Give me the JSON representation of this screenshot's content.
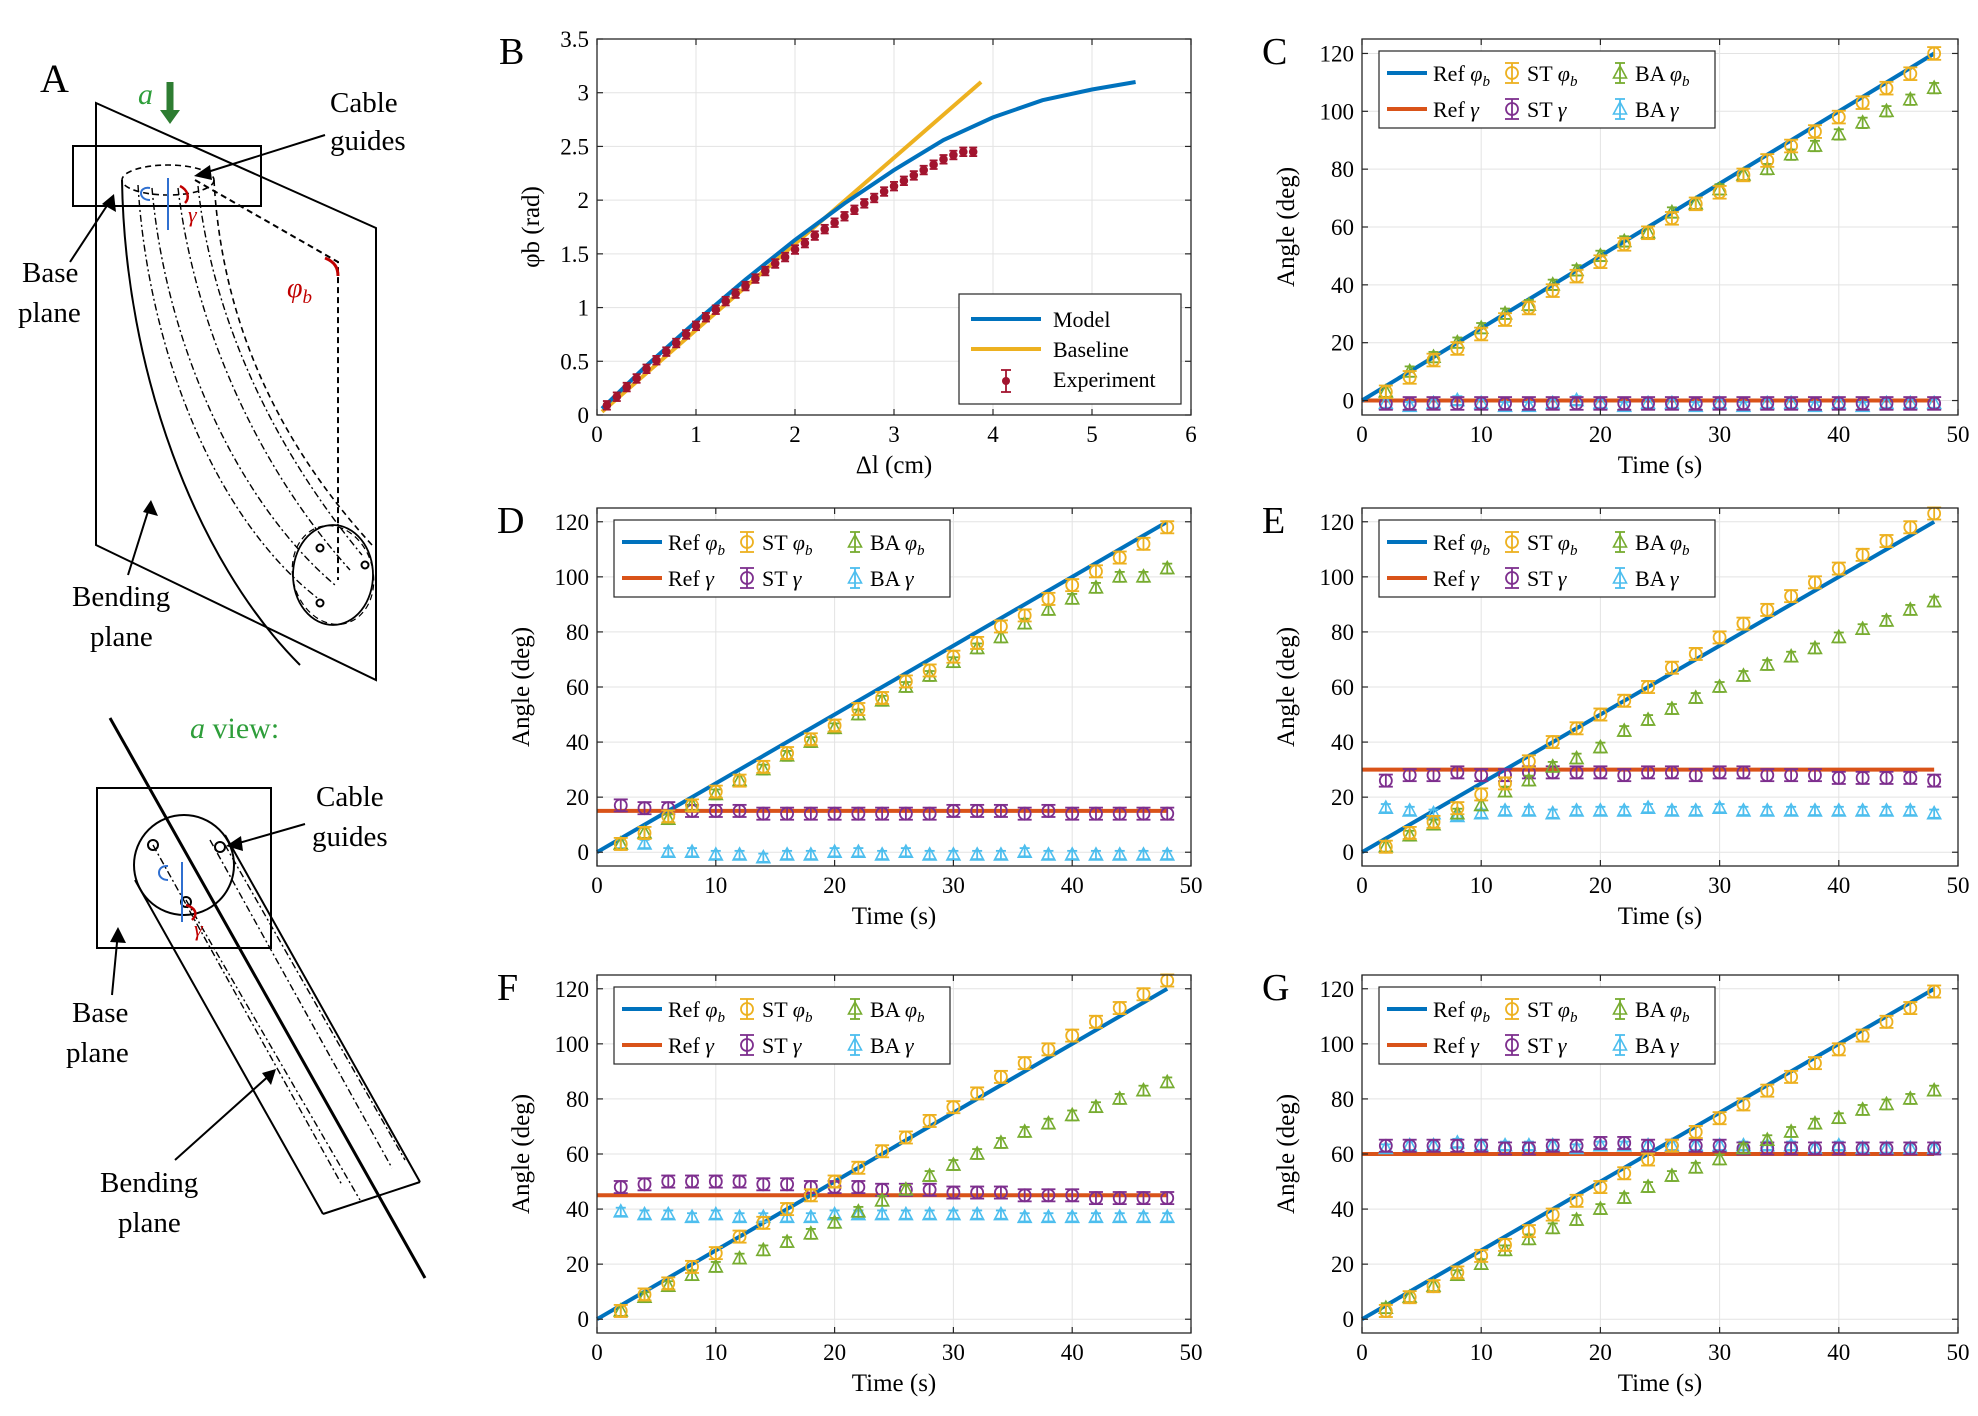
{
  "colors": {
    "ref_phi": "#0072BD",
    "ref_gamma": "#D95319",
    "st_phi": "#EDB120",
    "st_gamma": "#7E2F8E",
    "ba_phi": "#77AC30",
    "ba_gamma": "#4DBEEE",
    "experiment": "#A2142F",
    "annotation_red": "#C00000",
    "annotation_blue": "#2F6FD0",
    "annotation_green": "#2E9E3A",
    "arrow_green": "#2E7D32"
  },
  "schematic": {
    "panel_letter": "A",
    "top": {
      "arrow_label": "a",
      "cable_guides": "Cable guides",
      "base_plane": "Base plane",
      "bending_plane": "Bending plane",
      "phi_label": "φb",
      "gamma_label": "γ"
    },
    "bottom": {
      "view_title": "a view:",
      "cable_guides": "Cable guides",
      "base_plane": "Base plane",
      "bending_plane": "Bending plane",
      "gamma_label": "γ"
    }
  },
  "chart_data": [
    {
      "panel": "B",
      "type": "line",
      "xlabel": "Δl (cm)",
      "ylabel": "φb (rad)",
      "xlim": [
        0,
        6
      ],
      "ylim": [
        0,
        3.5
      ],
      "xticks": [
        0,
        1,
        2,
        3,
        4,
        5,
        6
      ],
      "yticks": [
        0,
        0.5,
        1,
        1.5,
        2,
        2.5,
        3,
        3.5
      ],
      "grid": true,
      "legend_position": "bottom-right",
      "legend": [
        "Model",
        "Baseline",
        "Experiment"
      ],
      "series": [
        {
          "name": "Model",
          "kind": "line",
          "color": "ref_phi",
          "x": [
            0.05,
            0.5,
            1.0,
            1.5,
            2.0,
            2.5,
            3.0,
            3.5,
            4.0,
            4.5,
            5.0,
            5.44
          ],
          "y": [
            0.06,
            0.46,
            0.87,
            1.26,
            1.63,
            1.97,
            2.28,
            2.56,
            2.77,
            2.93,
            3.03,
            3.1
          ]
        },
        {
          "name": "Baseline",
          "kind": "line",
          "color": "st_phi",
          "x": [
            0.05,
            3.88
          ],
          "y": [
            0.03,
            3.1
          ]
        },
        {
          "name": "Experiment",
          "kind": "errorbar",
          "color": "experiment",
          "x": [
            0.1,
            0.2,
            0.3,
            0.4,
            0.5,
            0.6,
            0.7,
            0.8,
            0.9,
            1.0,
            1.1,
            1.2,
            1.3,
            1.4,
            1.5,
            1.6,
            1.7,
            1.8,
            1.9,
            2.0,
            2.1,
            2.2,
            2.3,
            2.4,
            2.5,
            2.6,
            2.7,
            2.8,
            2.9,
            3.0,
            3.1,
            3.2,
            3.3,
            3.4,
            3.5,
            3.6,
            3.7,
            3.8
          ],
          "y": [
            0.09,
            0.17,
            0.26,
            0.34,
            0.43,
            0.51,
            0.59,
            0.67,
            0.75,
            0.83,
            0.91,
            0.98,
            1.06,
            1.13,
            1.2,
            1.27,
            1.34,
            1.41,
            1.47,
            1.54,
            1.6,
            1.67,
            1.73,
            1.79,
            1.85,
            1.91,
            1.97,
            2.02,
            2.08,
            2.13,
            2.18,
            2.23,
            2.28,
            2.33,
            2.38,
            2.42,
            2.45,
            2.45
          ],
          "err": 0.04
        }
      ]
    },
    {
      "panel": "C",
      "type": "line",
      "xlabel": "Time (s)",
      "ylabel": "Angle (deg)",
      "xlim": [
        0,
        50
      ],
      "ylim": [
        -5,
        125
      ],
      "xticks": [
        0,
        10,
        20,
        30,
        40,
        50
      ],
      "yticks": [
        0,
        20,
        40,
        60,
        80,
        100,
        120
      ],
      "grid": true,
      "legend_position": "top-left",
      "legend": [
        "Ref φb",
        "ST φb",
        "BA φb",
        "Ref γ",
        "ST γ",
        "BA γ"
      ],
      "ref_phi": {
        "x": [
          0,
          48
        ],
        "y": [
          0,
          120
        ]
      },
      "ref_gamma": 0,
      "t": [
        2,
        4,
        6,
        8,
        10,
        12,
        14,
        16,
        18,
        20,
        22,
        24,
        26,
        28,
        30,
        32,
        34,
        36,
        38,
        40,
        42,
        44,
        46,
        48
      ],
      "st_phi": [
        3,
        8,
        14,
        18,
        23,
        28,
        32,
        38,
        43,
        48,
        54,
        58,
        63,
        68,
        72,
        78,
        83,
        88,
        93,
        98,
        103,
        108,
        113,
        120
      ],
      "ba_phi": [
        3,
        10,
        15,
        20,
        25,
        30,
        33,
        40,
        45,
        50,
        55,
        58,
        65,
        68,
        73,
        78,
        80,
        85,
        88,
        92,
        96,
        100,
        104,
        108
      ],
      "st_gamma": [
        -1,
        -1,
        -1,
        -1,
        -1,
        -1,
        -1,
        -1,
        -1,
        -1,
        -1,
        -1,
        -1,
        -1,
        -1,
        -1,
        -1,
        -1,
        -1,
        -1,
        -1,
        -1,
        -1,
        -1
      ],
      "ba_gamma": [
        -1,
        -2,
        -1,
        0,
        -1,
        -2,
        -2,
        -1,
        0,
        -1,
        -2,
        -1,
        -1,
        -2,
        -1,
        -2,
        -1,
        -1,
        -2,
        -1,
        -2,
        -1,
        -1,
        -1
      ]
    },
    {
      "panel": "D",
      "type": "line",
      "xlabel": "Time (s)",
      "ylabel": "Angle (deg)",
      "xlim": [
        0,
        50
      ],
      "ylim": [
        -5,
        125
      ],
      "xticks": [
        0,
        10,
        20,
        30,
        40,
        50
      ],
      "yticks": [
        0,
        20,
        40,
        60,
        80,
        100,
        120
      ],
      "grid": true,
      "legend_position": "top-left",
      "legend": [
        "Ref φb",
        "ST φb",
        "BA φb",
        "Ref γ",
        "ST γ",
        "BA γ"
      ],
      "ref_phi": {
        "x": [
          0,
          48
        ],
        "y": [
          0,
          120
        ]
      },
      "ref_gamma": 15,
      "t": [
        2,
        4,
        6,
        8,
        10,
        12,
        14,
        16,
        18,
        20,
        22,
        24,
        26,
        28,
        30,
        32,
        34,
        36,
        38,
        40,
        42,
        44,
        46,
        48
      ],
      "st_phi": [
        3,
        7,
        13,
        17,
        22,
        26,
        31,
        36,
        41,
        46,
        52,
        56,
        62,
        66,
        71,
        76,
        82,
        86,
        92,
        97,
        102,
        107,
        112,
        118
      ],
      "ba_phi": [
        3,
        7,
        12,
        17,
        21,
        26,
        30,
        35,
        40,
        45,
        50,
        55,
        60,
        64,
        69,
        74,
        78,
        83,
        88,
        92,
        96,
        100,
        100,
        103
      ],
      "st_gamma": [
        17,
        16,
        16,
        15,
        15,
        15,
        14,
        14,
        14,
        14,
        14,
        14,
        14,
        14,
        15,
        15,
        15,
        14,
        15,
        14,
        14,
        14,
        14,
        14
      ],
      "ba_gamma": [
        3,
        3,
        0,
        0,
        -1,
        -1,
        -2,
        -1,
        -1,
        0,
        0,
        -1,
        0,
        -1,
        -1,
        -1,
        -1,
        0,
        -1,
        -1,
        -1,
        -1,
        -1,
        -1
      ]
    },
    {
      "panel": "E",
      "type": "line",
      "xlabel": "Time (s)",
      "ylabel": "Angle (deg)",
      "xlim": [
        0,
        50
      ],
      "ylim": [
        -5,
        125
      ],
      "xticks": [
        0,
        10,
        20,
        30,
        40,
        50
      ],
      "yticks": [
        0,
        20,
        40,
        60,
        80,
        100,
        120
      ],
      "grid": true,
      "legend_position": "top-left",
      "legend": [
        "Ref φb",
        "ST φb",
        "BA φb",
        "Ref γ",
        "ST γ",
        "BA γ"
      ],
      "ref_phi": {
        "x": [
          0,
          48
        ],
        "y": [
          0,
          120
        ]
      },
      "ref_gamma": 30,
      "t": [
        2,
        4,
        6,
        8,
        10,
        12,
        14,
        16,
        18,
        20,
        22,
        24,
        26,
        28,
        30,
        32,
        34,
        36,
        38,
        40,
        42,
        44,
        46,
        48
      ],
      "st_phi": [
        2,
        7,
        11,
        16,
        21,
        25,
        33,
        40,
        45,
        50,
        55,
        60,
        67,
        72,
        78,
        83,
        88,
        93,
        98,
        103,
        108,
        113,
        118,
        123
      ],
      "ba_phi": [
        2,
        6,
        10,
        14,
        17,
        22,
        26,
        31,
        34,
        38,
        44,
        48,
        52,
        56,
        60,
        64,
        68,
        71,
        74,
        78,
        81,
        84,
        88,
        91
      ],
      "st_gamma": [
        26,
        28,
        28,
        29,
        28,
        28,
        29,
        29,
        29,
        29,
        28,
        29,
        29,
        28,
        29,
        29,
        28,
        28,
        28,
        27,
        27,
        27,
        27,
        26
      ],
      "ba_gamma": [
        16,
        15,
        14,
        13,
        14,
        15,
        15,
        14,
        15,
        15,
        15,
        16,
        15,
        15,
        16,
        15,
        15,
        15,
        15,
        15,
        15,
        15,
        15,
        14
      ]
    },
    {
      "panel": "F",
      "type": "line",
      "xlabel": "Time (s)",
      "ylabel": "Angle (deg)",
      "xlim": [
        0,
        50
      ],
      "ylim": [
        -5,
        125
      ],
      "xticks": [
        0,
        10,
        20,
        30,
        40,
        50
      ],
      "yticks": [
        0,
        20,
        40,
        60,
        80,
        100,
        120
      ],
      "grid": true,
      "legend_position": "top-left",
      "legend": [
        "Ref φb",
        "ST φb",
        "BA φb",
        "Ref γ",
        "ST γ",
        "BA γ"
      ],
      "ref_phi": {
        "x": [
          0,
          48
        ],
        "y": [
          0,
          120
        ]
      },
      "ref_gamma": 45,
      "t": [
        2,
        4,
        6,
        8,
        10,
        12,
        14,
        16,
        18,
        20,
        22,
        24,
        26,
        28,
        30,
        32,
        34,
        36,
        38,
        40,
        42,
        44,
        46,
        48
      ],
      "st_phi": [
        3,
        9,
        13,
        19,
        24,
        30,
        35,
        40,
        45,
        50,
        55,
        61,
        66,
        72,
        77,
        82,
        88,
        93,
        98,
        103,
        108,
        113,
        118,
        123
      ],
      "ba_phi": [
        3,
        8,
        12,
        16,
        19,
        22,
        25,
        28,
        31,
        35,
        39,
        43,
        47,
        52,
        56,
        60,
        64,
        68,
        71,
        74,
        77,
        80,
        83,
        86
      ],
      "st_gamma": [
        48,
        49,
        50,
        50,
        50,
        50,
        49,
        49,
        48,
        48,
        48,
        47,
        47,
        47,
        46,
        46,
        46,
        45,
        45,
        45,
        44,
        44,
        44,
        44
      ],
      "ba_gamma": [
        39,
        38,
        38,
        37,
        38,
        37,
        37,
        37,
        37,
        38,
        38,
        38,
        38,
        38,
        38,
        38,
        38,
        37,
        37,
        37,
        37,
        37,
        37,
        37
      ]
    },
    {
      "panel": "G",
      "type": "line",
      "xlabel": "Time (s)",
      "ylabel": "Angle (deg)",
      "xlim": [
        0,
        50
      ],
      "ylim": [
        -5,
        125
      ],
      "xticks": [
        0,
        10,
        20,
        30,
        40,
        50
      ],
      "yticks": [
        0,
        20,
        40,
        60,
        80,
        100,
        120
      ],
      "grid": true,
      "legend_position": "top-left",
      "legend": [
        "Ref φb",
        "ST φb",
        "BA φb",
        "Ref γ",
        "ST γ",
        "BA γ"
      ],
      "ref_phi": {
        "x": [
          0,
          48
        ],
        "y": [
          0,
          120
        ]
      },
      "ref_gamma": 60,
      "t": [
        2,
        4,
        6,
        8,
        10,
        12,
        14,
        16,
        18,
        20,
        22,
        24,
        26,
        28,
        30,
        32,
        34,
        36,
        38,
        40,
        42,
        44,
        46,
        48
      ],
      "st_phi": [
        3,
        8,
        12,
        17,
        23,
        27,
        32,
        38,
        43,
        48,
        53,
        58,
        63,
        68,
        73,
        78,
        83,
        88,
        93,
        98,
        103,
        108,
        113,
        119
      ],
      "ba_phi": [
        4,
        8,
        12,
        16,
        20,
        25,
        29,
        33,
        36,
        40,
        44,
        48,
        52,
        55,
        58,
        62,
        65,
        68,
        71,
        73,
        76,
        78,
        80,
        83
      ],
      "st_gamma": [
        63,
        63,
        63,
        63,
        63,
        62,
        62,
        63,
        63,
        64,
        64,
        63,
        63,
        63,
        63,
        62,
        62,
        62,
        62,
        62,
        62,
        62,
        62,
        62
      ],
      "ba_gamma": [
        62,
        63,
        63,
        64,
        63,
        63,
        63,
        63,
        62,
        63,
        63,
        63,
        63,
        63,
        63,
        63,
        63,
        63,
        62,
        63,
        62,
        62,
        62,
        62
      ]
    }
  ]
}
